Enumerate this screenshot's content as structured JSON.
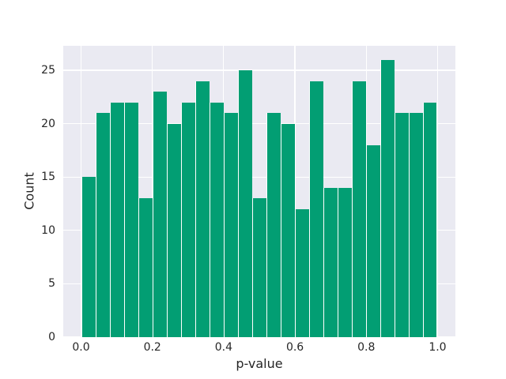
{
  "figure": {
    "background": "#ffffff",
    "plot_background": "#eaeaf2",
    "grid_color": "#ffffff",
    "text_color": "#262626"
  },
  "chart_data": {
    "type": "bar",
    "subtype": "histogram",
    "title": "",
    "xlabel": "p-value",
    "ylabel": "Count",
    "bar_color": "#029e73",
    "bar_edge_color": "#ffffff",
    "grid": true,
    "legend": false,
    "bin_edges": [
      0.0,
      0.04,
      0.08,
      0.12,
      0.16,
      0.2,
      0.24,
      0.28,
      0.32,
      0.36,
      0.4,
      0.44,
      0.48,
      0.52,
      0.56,
      0.6,
      0.64,
      0.68,
      0.72,
      0.76,
      0.8,
      0.84,
      0.88,
      0.92,
      0.96,
      1.0
    ],
    "counts": [
      15,
      21,
      22,
      22,
      13,
      23,
      20,
      22,
      24,
      22,
      21,
      25,
      13,
      21,
      20,
      12,
      24,
      14,
      14,
      24,
      18,
      26,
      21,
      21,
      22
    ],
    "total_samples": 500,
    "xticks": [
      0.0,
      0.2,
      0.4,
      0.6,
      0.8,
      1.0
    ],
    "xtick_labels": [
      "0.0",
      "0.2",
      "0.4",
      "0.6",
      "0.8",
      "1.0"
    ],
    "yticks": [
      0,
      5,
      10,
      15,
      20,
      25
    ],
    "ytick_labels": [
      "0",
      "5",
      "10",
      "15",
      "20",
      "25"
    ],
    "xlim": [
      -0.05,
      1.05
    ],
    "ylim": [
      0,
      27.3
    ]
  }
}
